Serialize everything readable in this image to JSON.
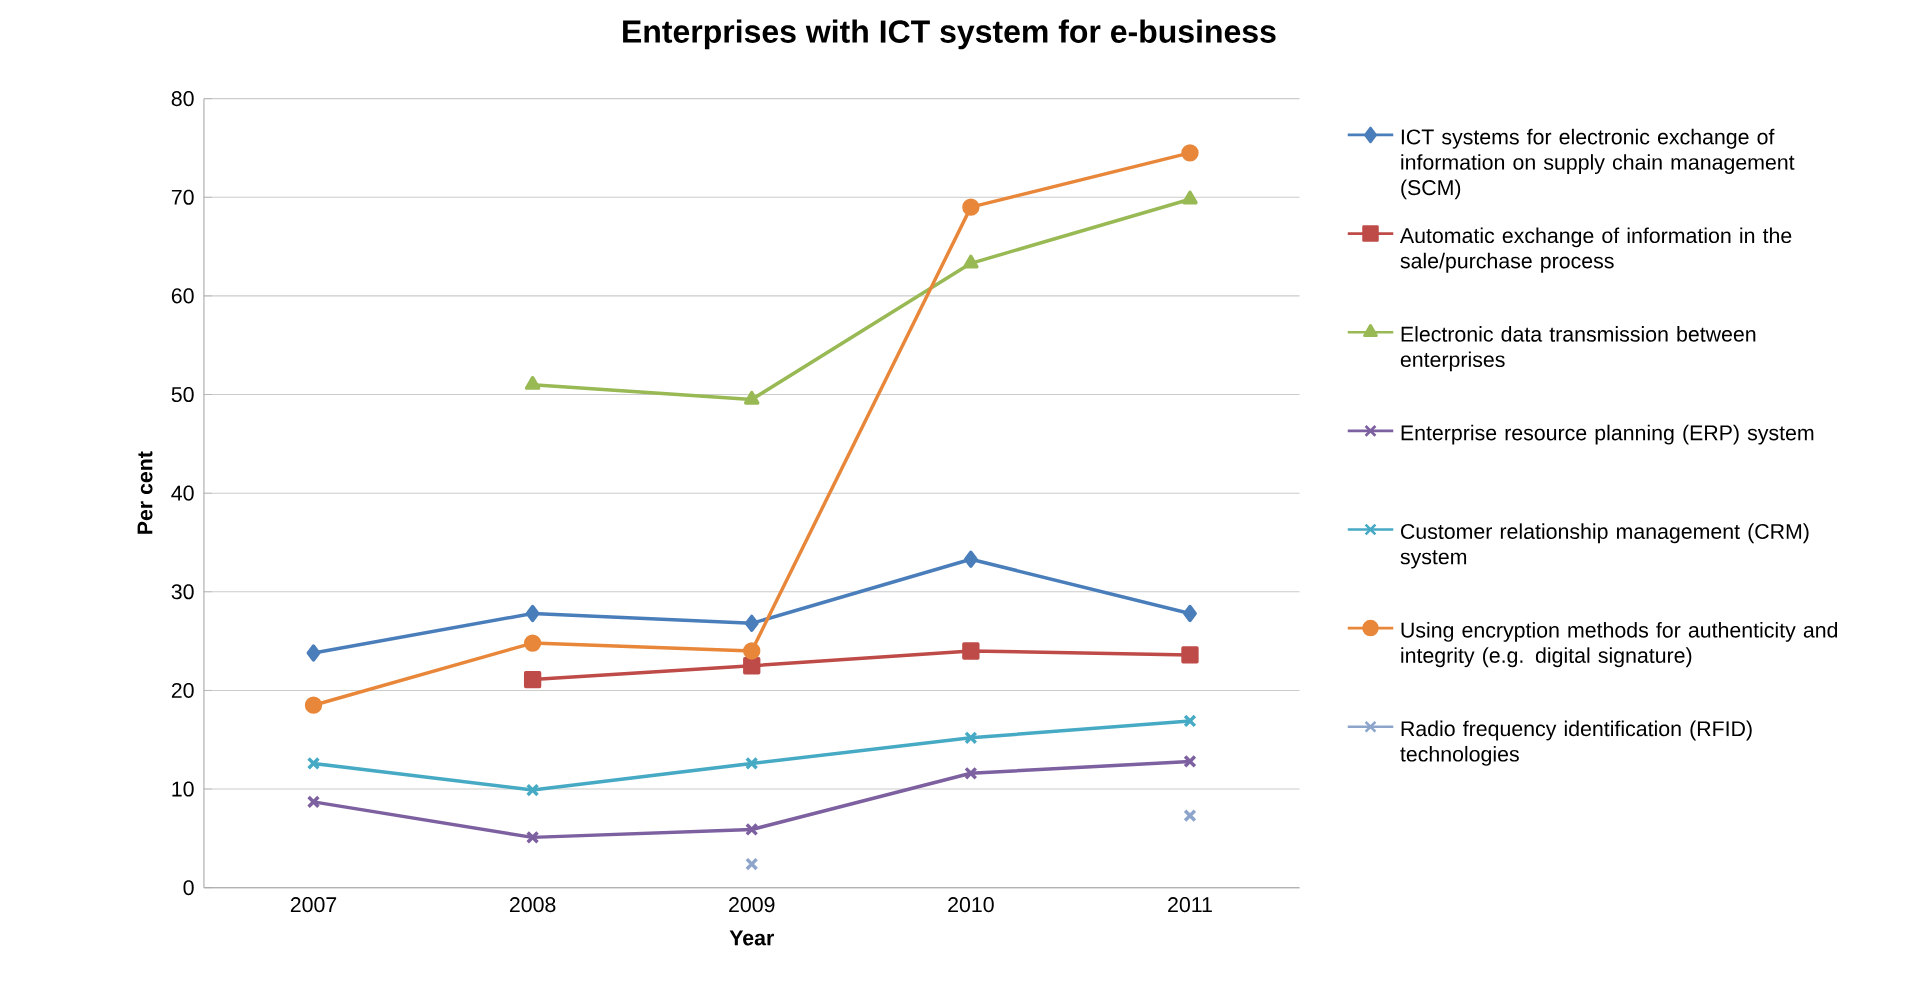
{
  "chart_data": {
    "type": "line",
    "title": "Enterprises with ICT system for e-business",
    "xlabel": "Year",
    "ylabel": "Per cent",
    "categories": [
      "2007",
      "2008",
      "2009",
      "2010",
      "2011"
    ],
    "series": [
      {
        "name": "ICT systems for electronic exchange of information on supply chain management (SCM)",
        "color": "#4a7ebb",
        "marker": "diamond",
        "values": [
          23.8,
          27.8,
          26.8,
          33.3,
          27.8
        ]
      },
      {
        "name": "Automatic exchange of information in the sale/purchase process",
        "color": "#be4b48",
        "marker": "square",
        "values": [
          null,
          21.1,
          22.5,
          24.0,
          23.6
        ]
      },
      {
        "name": "Electronic data transmission between enterprises",
        "color": "#98b954",
        "marker": "triangle",
        "values": [
          null,
          51.0,
          49.5,
          63.3,
          69.8
        ]
      },
      {
        "name": "Enterprise resource planning (ERP) system",
        "color": "#7d60a0",
        "marker": "cross",
        "values": [
          8.7,
          5.1,
          5.9,
          11.6,
          12.8
        ]
      },
      {
        "name": "Customer relationship management (CRM) system",
        "color": "#46aac5",
        "marker": "cross",
        "values": [
          12.6,
          9.9,
          12.6,
          15.2,
          16.9
        ]
      },
      {
        "name": "Using encryption methods for authenticity and integrity (e.g. digital signature)",
        "color": "#e8873a",
        "marker": "circle",
        "values": [
          18.5,
          24.8,
          24.0,
          69.0,
          74.5
        ]
      },
      {
        "name": "Radio frequency identification (RFID) technologies",
        "color": "#8ea5cb",
        "marker": "cross",
        "values": [
          null,
          null,
          2.4,
          null,
          7.3
        ]
      }
    ],
    "ylim": [
      0,
      80
    ],
    "yticks": [
      0,
      10,
      20,
      30,
      40,
      50,
      60,
      70,
      80
    ],
    "grid": "y",
    "legend": "right",
    "line_style": "solid"
  }
}
